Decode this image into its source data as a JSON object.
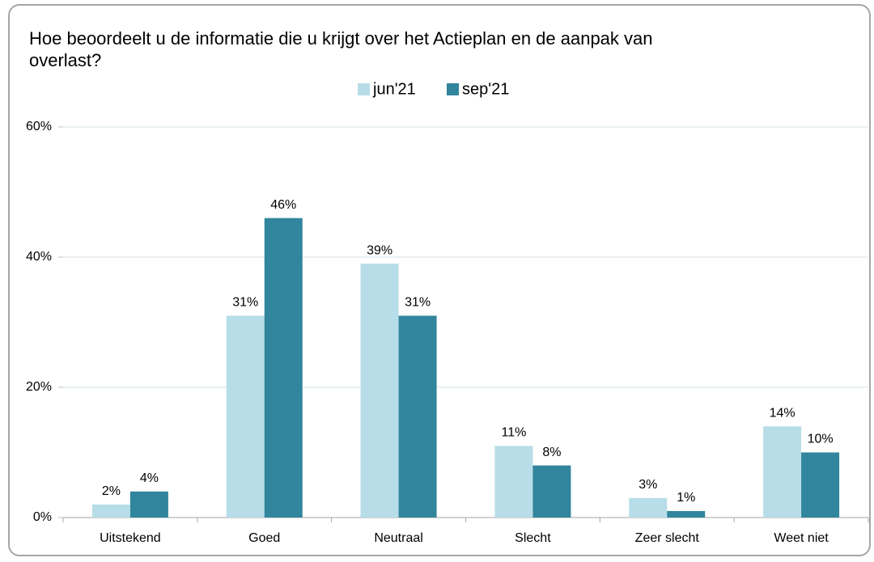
{
  "chart_data": {
    "type": "bar",
    "title": "Hoe beoordeelt u de informatie die u krijgt over het Actieplan en de aanpak van overlast?",
    "categories": [
      "Uitstekend",
      "Goed",
      "Neutraal",
      "Slecht",
      "Zeer slecht",
      "Weet niet"
    ],
    "series": [
      {
        "name": "jun'21",
        "color": "#b7dde8",
        "values": [
          2,
          31,
          39,
          11,
          3,
          14
        ],
        "value_labels": [
          "2%",
          "31%",
          "39%",
          "11%",
          "3%",
          "14%"
        ]
      },
      {
        "name": "sep'21",
        "color": "#31859c",
        "values": [
          4,
          46,
          31,
          8,
          1,
          10
        ],
        "value_labels": [
          "4%",
          "46%",
          "31%",
          "8%",
          "1%",
          "10%"
        ]
      }
    ],
    "ylim": [
      0,
      60
    ],
    "yticks": [
      {
        "value": 0,
        "label": "0%"
      },
      {
        "value": 20,
        "label": "20%"
      },
      {
        "value": 40,
        "label": "40%"
      },
      {
        "value": 60,
        "label": "60%"
      }
    ],
    "grid": true,
    "legend": "top"
  }
}
